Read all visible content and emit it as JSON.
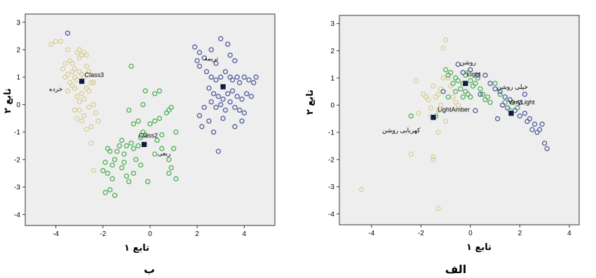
{
  "chart_data": [
    {
      "type": "scatter",
      "caption": "ب",
      "xlabel": "تابع ۱",
      "ylabel": "تابع ۲",
      "xlim": [
        -5.3,
        5.3
      ],
      "ylim": [
        -4.4,
        3.3
      ],
      "xticks": [
        "-4",
        "-2",
        "0",
        "2",
        "4"
      ],
      "yticks": [
        "3",
        "2",
        "1",
        "0",
        "-1",
        "-2",
        "-3",
        "-4"
      ],
      "series": [
        {
          "color": "#d8cf96",
          "points": [
            [
              -4.2,
              2.2
            ],
            [
              -4.0,
              2.3
            ],
            [
              -3.8,
              2.3
            ],
            [
              -3.6,
              1.5
            ],
            [
              -3.5,
              2.0
            ],
            [
              -3.4,
              1.6
            ],
            [
              -3.3,
              1.5
            ],
            [
              -3.2,
              1.3
            ],
            [
              -3.1,
              1.9
            ],
            [
              -3.0,
              2.0
            ],
            [
              -3.0,
              1.7
            ],
            [
              -2.9,
              1.8
            ],
            [
              -2.8,
              1.9
            ],
            [
              -2.7,
              1.8
            ],
            [
              -3.7,
              1.3
            ],
            [
              -3.6,
              1.0
            ],
            [
              -3.5,
              1.1
            ],
            [
              -3.4,
              0.8
            ],
            [
              -3.3,
              1.2
            ],
            [
              -3.2,
              1.0
            ],
            [
              -3.1,
              0.9
            ],
            [
              -3.0,
              1.2
            ],
            [
              -2.9,
              1.1
            ],
            [
              -2.8,
              1.0
            ],
            [
              -2.7,
              1.4
            ],
            [
              -2.6,
              1.2
            ],
            [
              -2.5,
              0.8
            ],
            [
              -2.4,
              0.8
            ],
            [
              -2.6,
              0.5
            ],
            [
              -3.1,
              0.3
            ],
            [
              -3.0,
              0.1
            ],
            [
              -2.9,
              0.4
            ],
            [
              -3.0,
              -0.2
            ],
            [
              -2.8,
              -0.4
            ],
            [
              -2.7,
              -0.9
            ],
            [
              -2.6,
              -0.1
            ],
            [
              -2.4,
              0.0
            ],
            [
              -2.3,
              -0.3
            ],
            [
              -2.2,
              -0.6
            ],
            [
              -3.1,
              -0.5
            ],
            [
              -2.9,
              -0.6
            ],
            [
              -2.5,
              -0.8
            ],
            [
              -2.5,
              -1.4
            ],
            [
              -2.4,
              -2.4
            ],
            [
              -3.2,
              0.6
            ],
            [
              -3.3,
              0.7
            ],
            [
              -2.7,
              0.6
            ],
            [
              -3.5,
              0.5
            ],
            [
              -2.8,
              0.2
            ],
            [
              -3.2,
              -0.2
            ]
          ]
        },
        {
          "color": "#4daf55",
          "points": [
            [
              -0.8,
              1.4
            ],
            [
              -0.2,
              0.5
            ],
            [
              0.2,
              0.4
            ],
            [
              0.4,
              0.5
            ],
            [
              -0.3,
              0.0
            ],
            [
              -0.9,
              -0.2
            ],
            [
              -0.7,
              -0.7
            ],
            [
              -0.5,
              -0.6
            ],
            [
              -0.3,
              -1.0
            ],
            [
              0.2,
              -0.6
            ],
            [
              0.4,
              -0.5
            ],
            [
              0.7,
              -0.3
            ],
            [
              0.8,
              -0.2
            ],
            [
              0.9,
              -0.1
            ],
            [
              1.1,
              -1.0
            ],
            [
              1.0,
              -1.6
            ],
            [
              0.8,
              -2.0
            ],
            [
              0.9,
              -2.3
            ],
            [
              0.8,
              -2.5
            ],
            [
              1.1,
              -2.7
            ],
            [
              0.3,
              -1.3
            ],
            [
              0.5,
              -1.6
            ],
            [
              0.2,
              -1.8
            ],
            [
              -0.2,
              -1.1
            ],
            [
              -0.4,
              -1.2
            ],
            [
              -0.5,
              -1.5
            ],
            [
              -0.7,
              -1.6
            ],
            [
              -0.8,
              -1.4
            ],
            [
              -1.0,
              -1.5
            ],
            [
              -1.1,
              -1.8
            ],
            [
              -1.2,
              -1.3
            ],
            [
              -1.3,
              -1.5
            ],
            [
              -1.4,
              -1.7
            ],
            [
              -1.5,
              -2.0
            ],
            [
              -1.7,
              -1.7
            ],
            [
              -1.8,
              -1.6
            ],
            [
              -1.6,
              -2.2
            ],
            [
              -1.9,
              -2.1
            ],
            [
              -2.0,
              -2.4
            ],
            [
              -1.8,
              -2.5
            ],
            [
              -1.6,
              -2.7
            ],
            [
              -1.7,
              -3.1
            ],
            [
              -1.9,
              -3.2
            ],
            [
              -1.5,
              -3.3
            ],
            [
              -1.2,
              -2.3
            ],
            [
              -1.0,
              -2.6
            ],
            [
              -0.9,
              -2.8
            ],
            [
              -0.7,
              -2.5
            ],
            [
              -0.4,
              -2.2
            ],
            [
              -0.1,
              -2.8
            ],
            [
              0.0,
              -0.7
            ],
            [
              0.5,
              -1.1
            ],
            [
              -0.6,
              -2.0
            ],
            [
              -1.1,
              -2.1
            ]
          ]
        },
        {
          "color": "#4f5b9a",
          "points": [
            [
              -3.5,
              2.6
            ],
            [
              1.9,
              2.1
            ],
            [
              2.1,
              1.9
            ],
            [
              2.3,
              1.7
            ],
            [
              2.6,
              2.0
            ],
            [
              3.0,
              2.4
            ],
            [
              3.3,
              2.2
            ],
            [
              3.4,
              1.8
            ],
            [
              3.6,
              1.6
            ],
            [
              2.8,
              1.5
            ],
            [
              2.0,
              1.6
            ],
            [
              2.1,
              1.4
            ],
            [
              2.4,
              1.2
            ],
            [
              2.6,
              1.0
            ],
            [
              2.8,
              0.9
            ],
            [
              3.0,
              1.0
            ],
            [
              3.2,
              1.2
            ],
            [
              3.4,
              1.0
            ],
            [
              3.5,
              0.9
            ],
            [
              3.7,
              1.0
            ],
            [
              3.8,
              0.8
            ],
            [
              4.0,
              1.0
            ],
            [
              4.2,
              0.9
            ],
            [
              4.4,
              0.8
            ],
            [
              4.5,
              1.0
            ],
            [
              2.5,
              0.6
            ],
            [
              2.7,
              0.4
            ],
            [
              2.9,
              0.3
            ],
            [
              3.1,
              0.2
            ],
            [
              3.3,
              0.4
            ],
            [
              3.5,
              0.5
            ],
            [
              3.7,
              0.3
            ],
            [
              3.9,
              0.2
            ],
            [
              4.1,
              0.4
            ],
            [
              4.3,
              0.3
            ],
            [
              2.6,
              0.1
            ],
            [
              2.8,
              -0.1
            ],
            [
              3.0,
              0.0
            ],
            [
              3.2,
              -0.2
            ],
            [
              3.4,
              0.1
            ],
            [
              3.6,
              -0.1
            ],
            [
              3.8,
              -0.2
            ],
            [
              4.0,
              -0.3
            ],
            [
              3.9,
              -0.6
            ],
            [
              3.6,
              -0.8
            ],
            [
              2.3,
              -0.1
            ],
            [
              2.1,
              -0.4
            ],
            [
              2.5,
              -0.6
            ],
            [
              2.7,
              -1.0
            ],
            [
              2.9,
              -1.7
            ],
            [
              2.2,
              -0.8
            ],
            [
              3.1,
              -0.5
            ]
          ]
        }
      ],
      "centroids": [
        {
          "x": -2.9,
          "y": 0.85,
          "label": "Class3",
          "label_dx": 4,
          "label_dy": -6
        },
        {
          "x": -0.25,
          "y": -1.45,
          "label": "Class2",
          "label_dx": -8,
          "label_dy": -10
        },
        {
          "x": 3.1,
          "y": 0.65,
          "label": "",
          "label_dx": 0,
          "label_dy": 0
        }
      ],
      "annotations": [
        {
          "x": -4.0,
          "y": 0.5,
          "text": "خرده"
        },
        {
          "x": 0.6,
          "y": -1.85,
          "text": "ربعی"
        },
        {
          "x": 2.6,
          "y": 1.6,
          "text": "تریمه"
        }
      ]
    },
    {
      "type": "scatter",
      "caption": "الف",
      "xlabel": "تابع ۱",
      "ylabel": "تابع ۲",
      "xlim": [
        -5.3,
        4.4
      ],
      "ylim": [
        -4.4,
        3.3
      ],
      "xticks": [
        "-4",
        "-2",
        "0",
        "2",
        "4"
      ],
      "yticks": [
        "3",
        "2",
        "1",
        "0",
        "-1",
        "-2",
        "-3",
        "-4"
      ],
      "series": [
        {
          "color": "#d8cf96",
          "points": [
            [
              -4.4,
              -3.1
            ],
            [
              -2.4,
              -1.8
            ],
            [
              -2.2,
              0.9
            ],
            [
              -2.1,
              -0.3
            ],
            [
              -1.9,
              0.4
            ],
            [
              -1.8,
              0.3
            ],
            [
              -1.7,
              0.2
            ],
            [
              -1.6,
              -0.1
            ],
            [
              -1.6,
              -0.4
            ],
            [
              -1.5,
              -1.9
            ],
            [
              -1.5,
              -2.0
            ],
            [
              -1.3,
              -3.8
            ],
            [
              -1.3,
              -1.0
            ],
            [
              -1.4,
              0.3
            ],
            [
              -1.2,
              0.6
            ],
            [
              -1.2,
              0.0
            ],
            [
              -1.1,
              1.0
            ],
            [
              -1.0,
              2.4
            ],
            [
              -1.1,
              2.1
            ],
            [
              -0.9,
              1.0
            ],
            [
              -0.8,
              0.7
            ],
            [
              -0.7,
              0.3
            ],
            [
              -0.6,
              0.1
            ],
            [
              -0.5,
              0.0
            ],
            [
              -1.3,
              -0.2
            ],
            [
              -1.0,
              -0.6
            ],
            [
              -1.3,
              0.4
            ],
            [
              -1.5,
              0.7
            ]
          ]
        },
        {
          "color": "#4daf55",
          "points": [
            [
              -2.4,
              -0.4
            ],
            [
              -1.4,
              -0.4
            ],
            [
              -1.0,
              1.3
            ],
            [
              -0.9,
              1.1
            ],
            [
              -0.8,
              1.2
            ],
            [
              -0.7,
              0.8
            ],
            [
              -0.6,
              1.0
            ],
            [
              -0.5,
              0.9
            ],
            [
              -0.4,
              0.6
            ],
            [
              -0.3,
              0.8
            ],
            [
              -0.2,
              1.1
            ],
            [
              -0.1,
              1.2
            ],
            [
              0.0,
              0.9
            ],
            [
              0.1,
              0.7
            ],
            [
              0.2,
              0.8
            ],
            [
              -0.2,
              0.5
            ],
            [
              -0.1,
              0.4
            ],
            [
              0.3,
              1.0
            ],
            [
              0.4,
              0.6
            ],
            [
              0.5,
              0.4
            ],
            [
              0.6,
              0.2
            ],
            [
              0.7,
              0.3
            ],
            [
              0.8,
              0.1
            ],
            [
              1.0,
              0.8
            ],
            [
              1.2,
              0.4
            ],
            [
              1.4,
              0.1
            ],
            [
              1.6,
              -0.2
            ],
            [
              1.7,
              0.1
            ],
            [
              1.9,
              -0.1
            ],
            [
              -0.3,
              0.3
            ],
            [
              -0.6,
              0.5
            ],
            [
              0.0,
              0.3
            ],
            [
              -0.9,
              0.3
            ]
          ]
        },
        {
          "color": "#4f5b9a",
          "points": [
            [
              -1.1,
              0.5
            ],
            [
              -0.5,
              1.5
            ],
            [
              -0.3,
              1.2
            ],
            [
              0.0,
              1.3
            ],
            [
              0.3,
              1.1
            ],
            [
              0.6,
              1.1
            ],
            [
              0.8,
              0.8
            ],
            [
              1.0,
              0.6
            ],
            [
              1.2,
              0.5
            ],
            [
              1.4,
              0.3
            ],
            [
              1.6,
              0.2
            ],
            [
              1.8,
              -0.2
            ],
            [
              2.0,
              -0.4
            ],
            [
              2.2,
              -0.3
            ],
            [
              2.4,
              -0.5
            ],
            [
              2.6,
              -0.7
            ],
            [
              2.8,
              -0.9
            ],
            [
              3.0,
              -1.4
            ],
            [
              3.1,
              -1.6
            ],
            [
              2.3,
              -0.6
            ],
            [
              2.5,
              -0.9
            ],
            [
              2.7,
              -1.0
            ],
            [
              2.0,
              0.1
            ],
            [
              2.2,
              0.4
            ],
            [
              1.1,
              -0.5
            ],
            [
              1.3,
              0.0
            ],
            [
              0.2,
              -0.2
            ],
            [
              0.4,
              0.4
            ],
            [
              1.5,
              -0.1
            ],
            [
              2.9,
              -0.7
            ]
          ]
        }
      ],
      "centroids": [
        {
          "x": -1.5,
          "y": -0.45,
          "label": "LightAmber",
          "label_dx": 6,
          "label_dy": -8
        },
        {
          "x": -0.2,
          "y": 0.8,
          "label": "Light",
          "label_dx": 2,
          "label_dy": -10
        },
        {
          "x": 1.65,
          "y": -0.3,
          "label": "VeryLight",
          "label_dx": -4,
          "label_dy": -13
        }
      ],
      "annotations": [
        {
          "x": -2.8,
          "y": -1.0,
          "text": "کهربایی روشن"
        },
        {
          "x": -0.1,
          "y": 1.5,
          "text": "روشن"
        },
        {
          "x": 1.7,
          "y": 0.6,
          "text": "خیلی روشن"
        }
      ]
    }
  ]
}
